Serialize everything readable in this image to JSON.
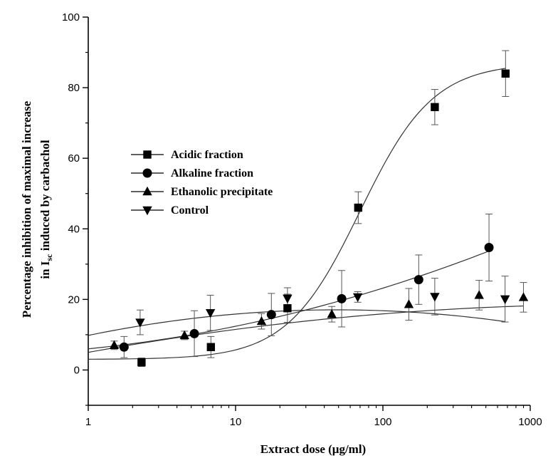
{
  "chart_data": {
    "type": "scatter",
    "title": "",
    "xlabel": "Extract dose (μg/ml)",
    "ylabel_line1": "Percentage inhibition of maximal increase",
    "ylabel_line2_prefix": "in I",
    "ylabel_line2_subscript": "sc",
    "ylabel_line2_suffix": " induced by carbachol",
    "xscale": "log",
    "xlim": [
      1,
      1000
    ],
    "ylim": [
      -10,
      100
    ],
    "x_ticks": [
      1,
      10,
      100,
      1000
    ],
    "x_tick_labels": [
      "1",
      "10",
      "100",
      "1000"
    ],
    "y_ticks": [
      0,
      20,
      40,
      60,
      80,
      100
    ],
    "y_tick_labels": [
      "0",
      "20",
      "40",
      "60",
      "80",
      "100"
    ],
    "legend_position": "center-left",
    "grid": false,
    "series": [
      {
        "name": "Acidic fraction",
        "marker": "square",
        "x": [
          2.3,
          6.8,
          22.5,
          68,
          225,
          680
        ],
        "y": [
          2.2,
          6.5,
          17.5,
          46,
          74.5,
          84
        ],
        "err": [
          1.2,
          3,
          4,
          4.5,
          5,
          6.5
        ],
        "fit": "sigmoid"
      },
      {
        "name": "Alkaline fraction",
        "marker": "circle",
        "x": [
          1.75,
          5.25,
          17.5,
          52.5,
          175,
          525
        ],
        "y": [
          6.5,
          10.3,
          15.7,
          20.2,
          25.6,
          34.7
        ],
        "err": [
          3,
          6.5,
          6,
          8,
          7,
          9.5
        ],
        "fit": "smooth"
      },
      {
        "name": "Ethanolic precipitate",
        "marker": "triangle-up",
        "x": [
          1.5,
          4.5,
          15,
          45,
          150,
          450,
          900
        ],
        "y": [
          7,
          9.8,
          13.8,
          15.8,
          18.6,
          21.2,
          20.6
        ],
        "err": [
          1.2,
          1.2,
          2.2,
          2.2,
          4.5,
          4.2,
          4.2
        ],
        "fit": "smooth"
      },
      {
        "name": "Control",
        "marker": "triangle-down",
        "x": [
          2.25,
          6.75,
          22.5,
          67.5,
          225,
          675
        ],
        "y": [
          13.5,
          16.2,
          20.3,
          20.7,
          20.8,
          20.1
        ],
        "err": [
          3.5,
          5,
          3,
          1.5,
          5.2,
          6.5
        ],
        "fit": "smooth"
      }
    ]
  }
}
